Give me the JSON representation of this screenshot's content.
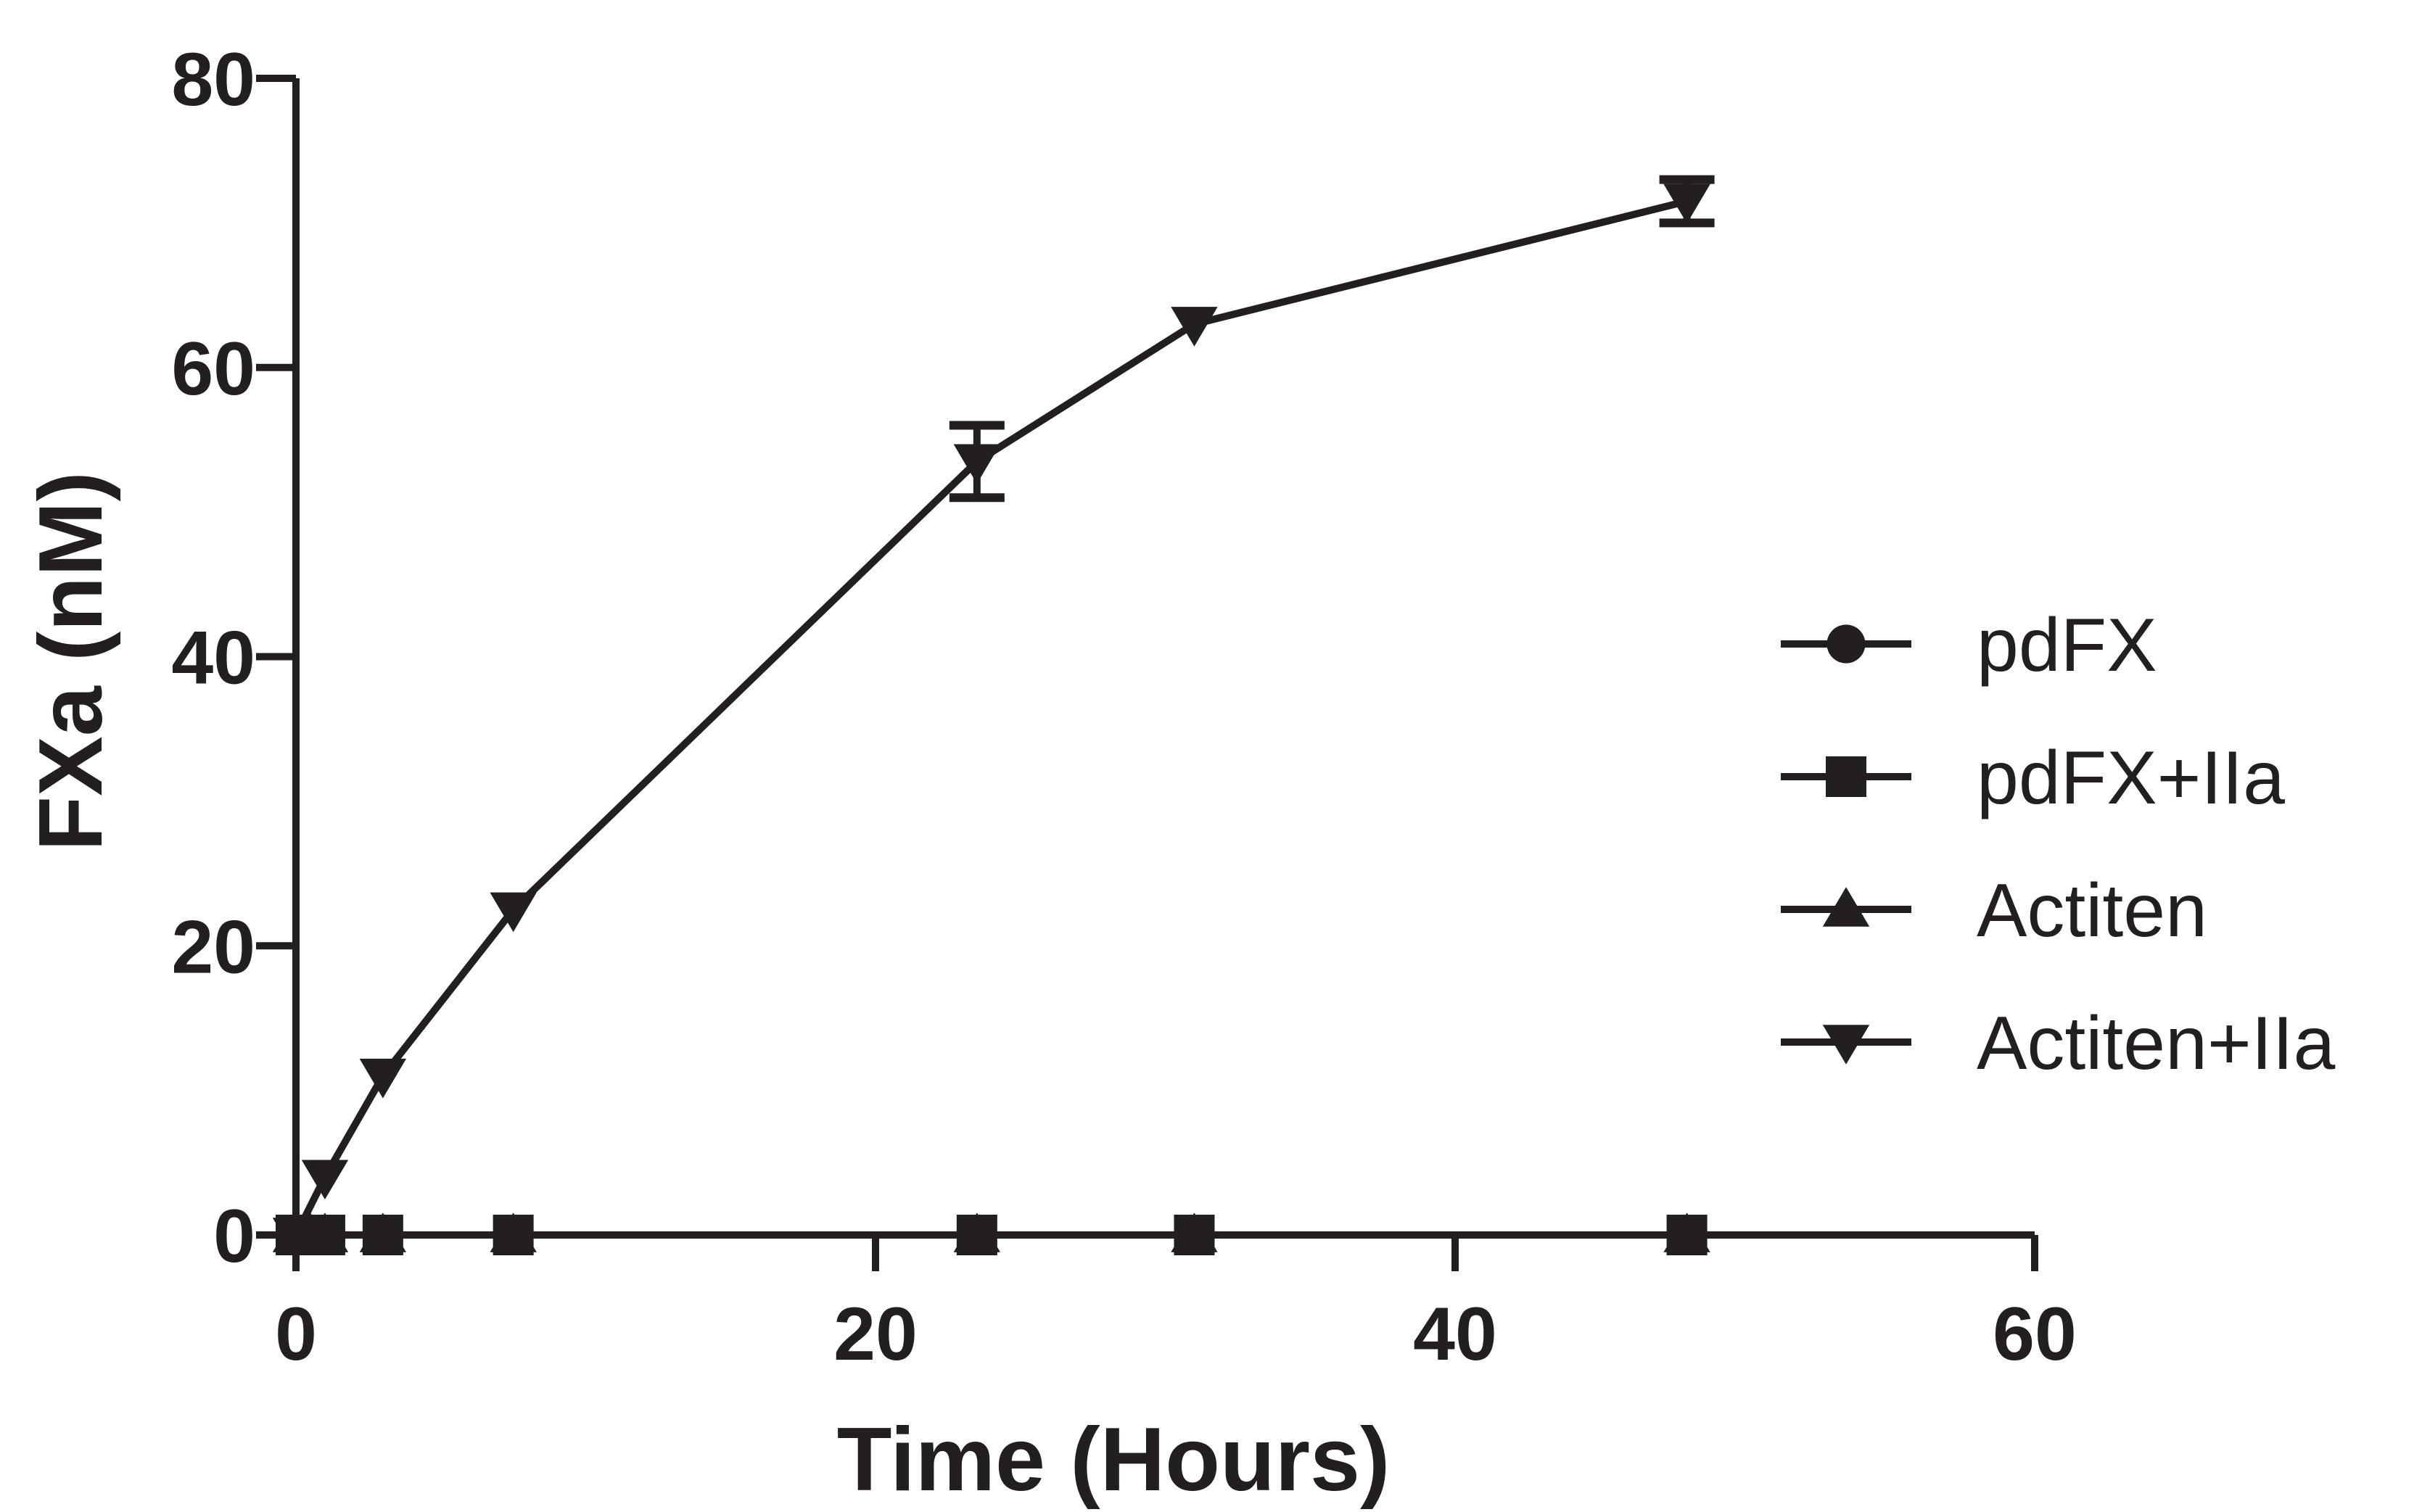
{
  "chart_data": {
    "type": "line",
    "xlabel": "Time (Hours)",
    "ylabel": "FXa (nM)",
    "xlim": [
      0,
      60
    ],
    "ylim": [
      0,
      80
    ],
    "xticks": [
      "0",
      "20",
      "40",
      "60"
    ],
    "yticks": [
      "0",
      "20",
      "40",
      "60",
      "80"
    ],
    "grid": false,
    "legend_position": "right",
    "line_color": "#231f20",
    "series": [
      {
        "name": "pdFX",
        "marker": "circle",
        "x": [
          0,
          0.5,
          1,
          3,
          7.5,
          23.5,
          31,
          48
        ],
        "y": [
          0,
          0,
          0,
          0,
          0,
          0,
          0,
          0
        ]
      },
      {
        "name": "pdFX+IIa",
        "marker": "square",
        "x": [
          0,
          0.5,
          1,
          3,
          7.5,
          23.5,
          31,
          48
        ],
        "y": [
          0,
          0,
          0,
          0,
          0,
          0,
          0,
          0
        ]
      },
      {
        "name": "Actiten",
        "marker": "triangle-up",
        "x": [
          0,
          0.5,
          1,
          3,
          7.5,
          23.5,
          31,
          48
        ],
        "y": [
          0,
          0,
          0,
          0,
          0,
          0,
          0,
          0
        ]
      },
      {
        "name": "Actiten+IIa",
        "marker": "triangle-down",
        "x": [
          0,
          1,
          3,
          7.5,
          23.5,
          31,
          48
        ],
        "y": [
          0,
          4,
          11,
          22.5,
          53.5,
          63,
          71.5
        ],
        "error": [
          0,
          0,
          0,
          0,
          2.5,
          0,
          1.5
        ]
      }
    ]
  }
}
